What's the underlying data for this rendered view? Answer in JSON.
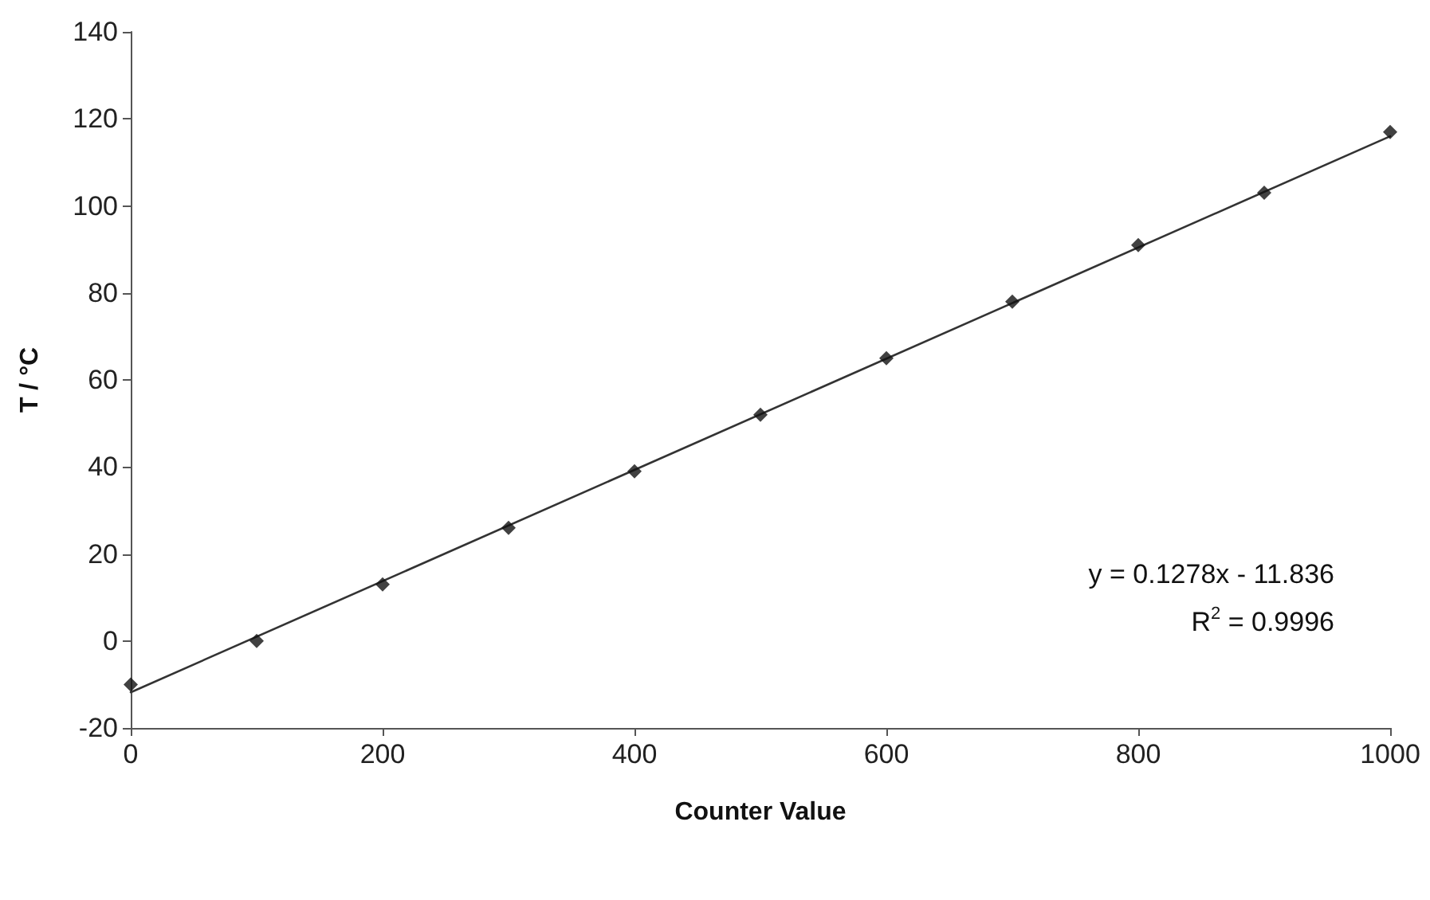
{
  "chart_data": {
    "type": "scatter",
    "xlabel": "Counter Value",
    "ylabel": "T / °C",
    "x": [
      0,
      100,
      200,
      300,
      400,
      500,
      600,
      700,
      800,
      900,
      1000
    ],
    "series": [
      {
        "color": "#111111",
        "marker": "diamond",
        "values": [
          -10,
          0,
          13,
          26,
          39,
          52,
          65,
          78,
          91,
          103,
          117
        ]
      },
      {
        "type": "line",
        "color": "#333333",
        "marker": "none",
        "line_style": "solid",
        "x": [
          0,
          1000
        ],
        "values": [
          -11.8,
          116
        ]
      }
    ],
    "xlim": [
      0,
      1000
    ],
    "xticks": [
      0,
      200,
      400,
      600,
      800,
      1000
    ],
    "ylim": [
      -20,
      140
    ],
    "yticks": [
      -20,
      0,
      20,
      40,
      60,
      80,
      100,
      120,
      140
    ],
    "annotations": [
      "y = 0.1278x - 11.836",
      "R$^{2}$ = 0.9996"
    ],
    "grid": false
  }
}
